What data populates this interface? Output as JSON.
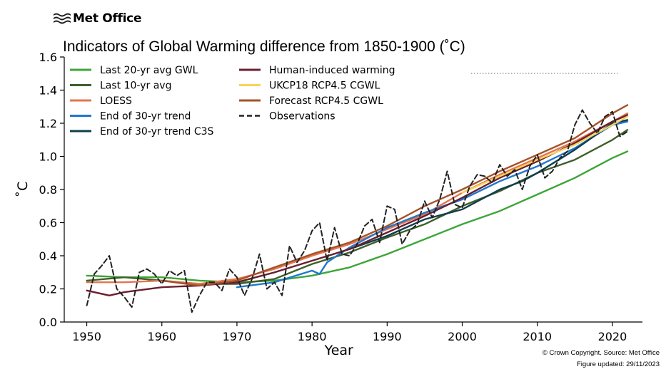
{
  "brand": {
    "name": "Met Office",
    "logo_icon": "met-office-wave-icon"
  },
  "title": "Indicators of Global Warming difference from 1850-1900 (˚C)",
  "credit": "© Crown Copyright. Source: Met Office",
  "updated": "Figure updated: 29/11/2023",
  "chart_data": {
    "type": "line",
    "title": "Indicators of Global Warming difference from 1850-1900 (˚C)",
    "xlabel": "Year",
    "ylabel": "˚C",
    "xlim": [
      1947,
      2024
    ],
    "ylim": [
      0.0,
      1.6
    ],
    "xticks": [
      1950,
      1960,
      1970,
      1980,
      1990,
      2000,
      2010,
      2020
    ],
    "yticks": [
      "0.0",
      "0.2",
      "0.4",
      "0.6",
      "0.8",
      "1.0",
      "1.2",
      "1.4",
      "1.6"
    ],
    "grid": false,
    "legend_position": "top-left",
    "series": [
      {
        "name": "Last 20-yr avg GWL",
        "color": "#3da537",
        "dash": false,
        "x": [
          1950,
          1955,
          1960,
          1965,
          1970,
          1975,
          1980,
          1985,
          1990,
          1995,
          2000,
          2005,
          2010,
          2015,
          2020,
          2022
        ],
        "y": [
          0.28,
          0.27,
          0.27,
          0.25,
          0.24,
          0.25,
          0.28,
          0.33,
          0.41,
          0.5,
          0.59,
          0.67,
          0.77,
          0.87,
          0.99,
          1.03
        ]
      },
      {
        "name": "Last 10-yr avg",
        "color": "#3f5f2a",
        "dash": false,
        "x": [
          1950,
          1955,
          1960,
          1965,
          1970,
          1975,
          1980,
          1985,
          1990,
          1995,
          2000,
          2005,
          2010,
          2015,
          2020,
          2022
        ],
        "y": [
          0.25,
          0.27,
          0.25,
          0.23,
          0.23,
          0.26,
          0.35,
          0.42,
          0.51,
          0.59,
          0.7,
          0.79,
          0.9,
          0.98,
          1.1,
          1.16
        ]
      },
      {
        "name": "LOESS",
        "color": "#e4754f",
        "dash": false,
        "x": [
          1950,
          1955,
          1960,
          1965,
          1970,
          1975,
          1980,
          1985,
          1990,
          1995,
          2000,
          2005,
          2010,
          2015,
          2020,
          2022
        ],
        "y": [
          0.24,
          0.24,
          0.25,
          0.23,
          0.26,
          0.32,
          0.4,
          0.47,
          0.56,
          0.65,
          0.78,
          0.89,
          0.99,
          1.09,
          1.21,
          1.26
        ]
      },
      {
        "name": "End of 30-yr trend",
        "color": "#1f78d1",
        "dash": false,
        "x": [
          1970,
          1975,
          1980,
          1981,
          1982,
          1985,
          1990,
          1995,
          2000,
          2005,
          2010,
          2015,
          2020,
          2022
        ],
        "y": [
          0.21,
          0.24,
          0.31,
          0.29,
          0.36,
          0.45,
          0.57,
          0.66,
          0.74,
          0.85,
          0.94,
          1.05,
          1.19,
          1.21
        ]
      },
      {
        "name": "End of 30-yr trend C3S",
        "color": "#0f3e4f",
        "dash": false,
        "x": [
          1985,
          1990,
          1995,
          2000,
          2005,
          2008,
          2010,
          2015,
          2020,
          2022
        ],
        "y": [
          0.44,
          0.52,
          0.62,
          0.68,
          0.8,
          0.85,
          0.9,
          1.04,
          1.2,
          1.22
        ]
      },
      {
        "name": "Human-induced warming",
        "color": "#6b1e2f",
        "dash": false,
        "x": [
          1950,
          1953,
          1955,
          1960,
          1965,
          1970,
          1975,
          1980,
          1985,
          1990,
          1995,
          2000,
          2005,
          2010,
          2015,
          2020,
          2022
        ],
        "y": [
          0.19,
          0.16,
          0.18,
          0.21,
          0.22,
          0.24,
          0.3,
          0.37,
          0.44,
          0.54,
          0.64,
          0.75,
          0.87,
          0.97,
          1.08,
          1.21,
          1.25
        ]
      },
      {
        "name": "UKCP18 RCP4.5 CGWL",
        "color": "#f5d55a",
        "dash": false,
        "x": [
          2000,
          2005,
          2010,
          2015,
          2020,
          2022
        ],
        "y": [
          0.78,
          0.88,
          0.98,
          1.07,
          1.19,
          1.24
        ]
      },
      {
        "name": "Forecast RCP4.5 CGWL",
        "color": "#a5522a",
        "dash": false,
        "x": [
          1960,
          1965,
          1970,
          1975,
          1980,
          1985,
          1990,
          1995,
          2000,
          2005,
          2010,
          2015,
          2020,
          2022
        ],
        "y": [
          0.25,
          0.22,
          0.25,
          0.33,
          0.41,
          0.48,
          0.58,
          0.7,
          0.8,
          0.91,
          1.01,
          1.11,
          1.26,
          1.31
        ]
      },
      {
        "name": "Observations",
        "color": "#222222",
        "dash": true,
        "x": [
          1950,
          1951,
          1952,
          1953,
          1954,
          1955,
          1956,
          1957,
          1958,
          1959,
          1960,
          1961,
          1962,
          1963,
          1964,
          1965,
          1966,
          1967,
          1968,
          1969,
          1970,
          1971,
          1972,
          1973,
          1974,
          1975,
          1976,
          1977,
          1978,
          1979,
          1980,
          1981,
          1982,
          1983,
          1984,
          1985,
          1986,
          1987,
          1988,
          1989,
          1990,
          1991,
          1992,
          1993,
          1994,
          1995,
          1996,
          1997,
          1998,
          1999,
          2000,
          2001,
          2002,
          2003,
          2004,
          2005,
          2006,
          2007,
          2008,
          2009,
          2010,
          2011,
          2012,
          2013,
          2014,
          2015,
          2016,
          2017,
          2018,
          2019,
          2020,
          2021,
          2022
        ],
        "y": [
          0.1,
          0.29,
          0.34,
          0.4,
          0.2,
          0.15,
          0.09,
          0.3,
          0.32,
          0.29,
          0.23,
          0.31,
          0.28,
          0.31,
          0.06,
          0.16,
          0.24,
          0.24,
          0.19,
          0.32,
          0.27,
          0.16,
          0.26,
          0.41,
          0.2,
          0.24,
          0.16,
          0.46,
          0.36,
          0.43,
          0.55,
          0.6,
          0.37,
          0.57,
          0.41,
          0.4,
          0.47,
          0.58,
          0.62,
          0.48,
          0.7,
          0.68,
          0.47,
          0.55,
          0.59,
          0.73,
          0.63,
          0.74,
          0.91,
          0.71,
          0.69,
          0.82,
          0.89,
          0.88,
          0.84,
          0.95,
          0.88,
          0.92,
          0.8,
          0.94,
          1.01,
          0.87,
          0.91,
          0.99,
          1.03,
          1.19,
          1.28,
          1.2,
          1.14,
          1.24,
          1.27,
          1.12,
          1.15
        ]
      }
    ],
    "legend_columns": [
      [
        "Last 20-yr avg GWL",
        "Last 10-yr avg",
        "LOESS",
        "End of 30-yr trend",
        "End of 30-yr trend C3S"
      ],
      [
        "Human-induced warming",
        "UKCP18 RCP4.5 CGWL",
        "Forecast RCP4.5 CGWL",
        "Observations"
      ]
    ]
  }
}
